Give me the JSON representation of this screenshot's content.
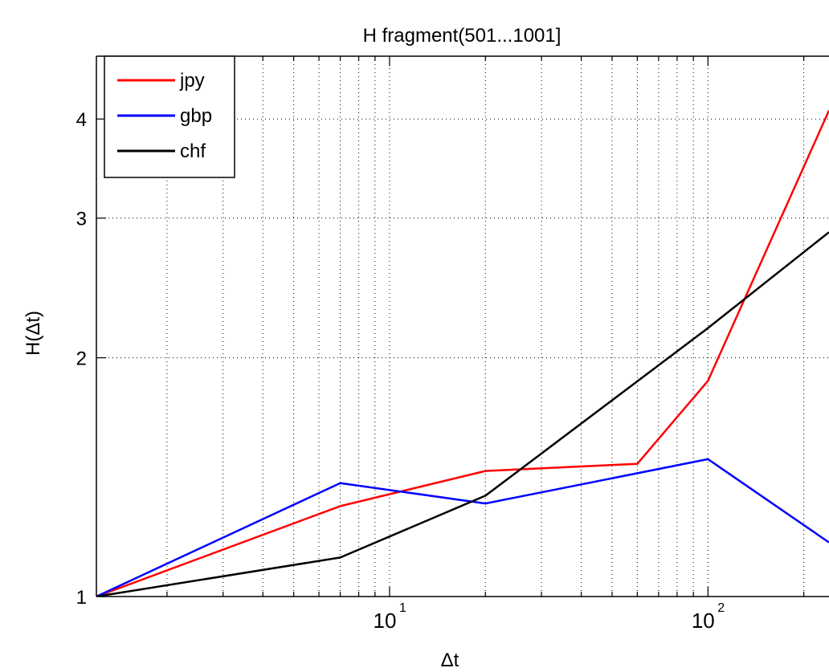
{
  "chart_data": {
    "type": "line",
    "title": "H fragment(501...1001]",
    "xlabel": "Δt",
    "ylabel": "H(Δt)",
    "xscale": "log",
    "yscale": "log",
    "xlim": [
      1.2,
      240
    ],
    "ylim": [
      1,
      4.8
    ],
    "x_tick_labels": [
      {
        "value": 10,
        "base": "10",
        "exp": "1"
      },
      {
        "value": 100,
        "base": "10",
        "exp": "2"
      }
    ],
    "y_ticks": [
      1,
      2,
      3,
      4
    ],
    "y_tick_labels": [
      "1",
      "2",
      "3",
      "4"
    ],
    "grid": "dotted",
    "legend_position": "top-left",
    "series": [
      {
        "name": "jpy",
        "color": "#ff0000",
        "x": [
          1.2,
          7,
          20,
          60,
          100,
          240
        ],
        "y": [
          1.0,
          1.3,
          1.44,
          1.47,
          1.87,
          4.1
        ]
      },
      {
        "name": "gbp",
        "color": "#0000ff",
        "x": [
          1.2,
          7,
          20,
          100,
          240
        ],
        "y": [
          1.0,
          1.39,
          1.31,
          1.49,
          1.17
        ]
      },
      {
        "name": "chf",
        "color": "#000000",
        "x": [
          1.2,
          7,
          20,
          100,
          240
        ],
        "y": [
          1.0,
          1.12,
          1.34,
          2.18,
          2.88
        ]
      }
    ]
  }
}
